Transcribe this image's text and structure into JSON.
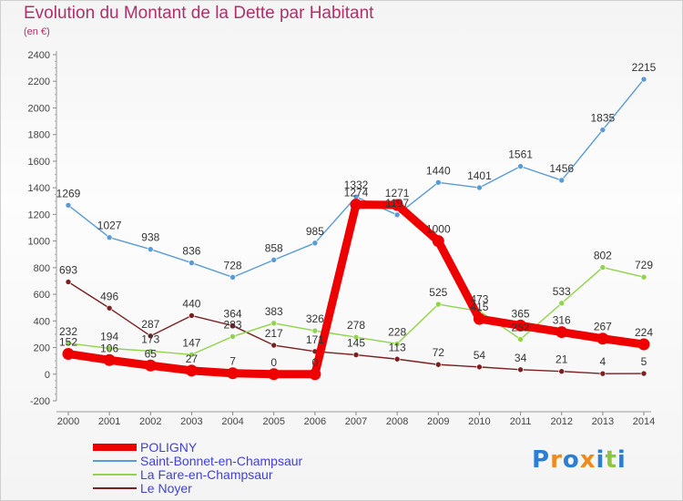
{
  "chart_data": {
    "type": "line",
    "title": "Evolution du Montant de la Dette par Habitant",
    "subtitle": "(en €)",
    "x": [
      "2000",
      "2001",
      "2002",
      "2003",
      "2004",
      "2005",
      "2006",
      "2007",
      "2008",
      "2009",
      "2010",
      "2011",
      "2012",
      "2013",
      "2014"
    ],
    "ylim": [
      -200,
      2400
    ],
    "yticks": [
      -200,
      0,
      200,
      400,
      600,
      800,
      1000,
      1200,
      1400,
      1600,
      1800,
      2000,
      2200,
      2400
    ],
    "grid": false,
    "legend_position": "bottom-left",
    "series": [
      {
        "name": "POLIGNY",
        "color": "#ee0000",
        "values": [
          152,
          106,
          65,
          27,
          7,
          0,
          0,
          1274,
          1271,
          1000,
          415,
          365,
          316,
          267,
          224
        ]
      },
      {
        "name": "Saint-Bonnet-en-Champsaur",
        "color": "#5a9bd5",
        "values": [
          1269,
          1027,
          938,
          836,
          728,
          858,
          985,
          1332,
          1197,
          1440,
          1401,
          1561,
          1456,
          1835,
          2215
        ]
      },
      {
        "name": "La Fare-en-Champsaur",
        "color": "#8fd44a",
        "values": [
          232,
          194,
          173,
          147,
          283,
          383,
          326,
          278,
          228,
          525,
          473,
          262,
          533,
          802,
          729
        ]
      },
      {
        "name": "Le Noyer",
        "color": "#7a2020",
        "values": [
          693,
          496,
          287,
          440,
          364,
          217,
          171,
          145,
          113,
          72,
          54,
          34,
          21,
          4,
          5
        ]
      }
    ]
  },
  "logo": {
    "text": "Proxiti",
    "colors": [
      "#2a7fd4",
      "#f08a1c",
      "#2a7fd4",
      "#f08a1c",
      "#2a7fd4",
      "#8cc63f",
      "#2a7fd4"
    ]
  }
}
